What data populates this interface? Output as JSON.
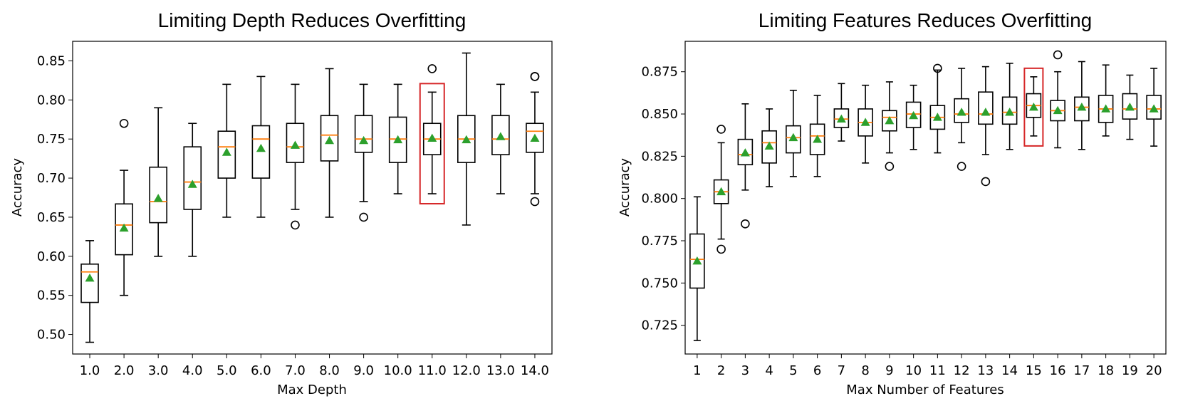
{
  "colors": {
    "box": "#000000",
    "median": "#ff7f0e",
    "mean_marker": "#2ca02c",
    "highlight": "#d62728",
    "background": "#ffffff"
  },
  "chart_data": [
    {
      "type": "box",
      "title": "Limiting Depth Reduces Overfitting",
      "xlabel": "Max Depth",
      "ylabel": "Accuracy",
      "ylim": [
        0.475,
        0.875
      ],
      "yticks": [
        "0.50",
        "0.55",
        "0.60",
        "0.65",
        "0.70",
        "0.75",
        "0.80",
        "0.85"
      ],
      "categories": [
        "1.0",
        "2.0",
        "3.0",
        "4.0",
        "5.0",
        "6.0",
        "7.0",
        "8.0",
        "9.0",
        "10.0",
        "11.0",
        "12.0",
        "13.0",
        "14.0"
      ],
      "highlight_category": "11.0",
      "boxes": [
        {
          "whislo": 0.49,
          "q1": 0.541,
          "med": 0.58,
          "q3": 0.59,
          "whishi": 0.62,
          "mean": 0.572,
          "fliers": []
        },
        {
          "whislo": 0.55,
          "q1": 0.602,
          "med": 0.64,
          "q3": 0.667,
          "whishi": 0.71,
          "mean": 0.636,
          "fliers": [
            0.77
          ]
        },
        {
          "whislo": 0.6,
          "q1": 0.643,
          "med": 0.67,
          "q3": 0.714,
          "whishi": 0.79,
          "mean": 0.674,
          "fliers": []
        },
        {
          "whislo": 0.6,
          "q1": 0.66,
          "med": 0.695,
          "q3": 0.74,
          "whishi": 0.77,
          "mean": 0.692,
          "fliers": []
        },
        {
          "whislo": 0.65,
          "q1": 0.7,
          "med": 0.74,
          "q3": 0.76,
          "whishi": 0.82,
          "mean": 0.733,
          "fliers": []
        },
        {
          "whislo": 0.65,
          "q1": 0.7,
          "med": 0.75,
          "q3": 0.767,
          "whishi": 0.83,
          "mean": 0.738,
          "fliers": []
        },
        {
          "whislo": 0.66,
          "q1": 0.72,
          "med": 0.74,
          "q3": 0.77,
          "whishi": 0.82,
          "mean": 0.742,
          "fliers": [
            0.64
          ]
        },
        {
          "whislo": 0.65,
          "q1": 0.722,
          "med": 0.755,
          "q3": 0.78,
          "whishi": 0.84,
          "mean": 0.748,
          "fliers": []
        },
        {
          "whislo": 0.67,
          "q1": 0.733,
          "med": 0.75,
          "q3": 0.78,
          "whishi": 0.82,
          "mean": 0.748,
          "fliers": [
            0.65
          ]
        },
        {
          "whislo": 0.68,
          "q1": 0.72,
          "med": 0.75,
          "q3": 0.778,
          "whishi": 0.82,
          "mean": 0.749,
          "fliers": []
        },
        {
          "whislo": 0.68,
          "q1": 0.73,
          "med": 0.75,
          "q3": 0.77,
          "whishi": 0.81,
          "mean": 0.751,
          "fliers": [
            0.84
          ]
        },
        {
          "whislo": 0.64,
          "q1": 0.72,
          "med": 0.75,
          "q3": 0.78,
          "whishi": 0.86,
          "mean": 0.749,
          "fliers": []
        },
        {
          "whislo": 0.68,
          "q1": 0.73,
          "med": 0.75,
          "q3": 0.78,
          "whishi": 0.82,
          "mean": 0.753,
          "fliers": []
        },
        {
          "whislo": 0.68,
          "q1": 0.733,
          "med": 0.76,
          "q3": 0.77,
          "whishi": 0.81,
          "mean": 0.751,
          "fliers": [
            0.67,
            0.83,
            0.83
          ]
        }
      ]
    },
    {
      "type": "box",
      "title": "Limiting Features Reduces Overfitting",
      "xlabel": "Max Number of Features",
      "ylabel": "Accuracy",
      "ylim": [
        0.708,
        0.893
      ],
      "yticks": [
        "0.725",
        "0.750",
        "0.775",
        "0.800",
        "0.825",
        "0.850",
        "0.875"
      ],
      "categories": [
        "1",
        "2",
        "3",
        "4",
        "5",
        "6",
        "7",
        "8",
        "9",
        "10",
        "11",
        "12",
        "13",
        "14",
        "15",
        "16",
        "17",
        "18",
        "19",
        "20"
      ],
      "highlight_category": "15",
      "boxes": [
        {
          "whislo": 0.716,
          "q1": 0.747,
          "med": 0.764,
          "q3": 0.779,
          "whishi": 0.801,
          "mean": 0.763,
          "fliers": []
        },
        {
          "whislo": 0.776,
          "q1": 0.797,
          "med": 0.804,
          "q3": 0.811,
          "whishi": 0.833,
          "mean": 0.804,
          "fliers": [
            0.77,
            0.841
          ]
        },
        {
          "whislo": 0.805,
          "q1": 0.82,
          "med": 0.826,
          "q3": 0.835,
          "whishi": 0.856,
          "mean": 0.827,
          "fliers": [
            0.785
          ]
        },
        {
          "whislo": 0.807,
          "q1": 0.821,
          "med": 0.833,
          "q3": 0.84,
          "whishi": 0.853,
          "mean": 0.831,
          "fliers": []
        },
        {
          "whislo": 0.813,
          "q1": 0.827,
          "med": 0.836,
          "q3": 0.843,
          "whishi": 0.864,
          "mean": 0.836,
          "fliers": []
        },
        {
          "whislo": 0.813,
          "q1": 0.826,
          "med": 0.837,
          "q3": 0.844,
          "whishi": 0.861,
          "mean": 0.835,
          "fliers": []
        },
        {
          "whislo": 0.834,
          "q1": 0.842,
          "med": 0.847,
          "q3": 0.853,
          "whishi": 0.868,
          "mean": 0.847,
          "fliers": []
        },
        {
          "whislo": 0.821,
          "q1": 0.837,
          "med": 0.845,
          "q3": 0.853,
          "whishi": 0.867,
          "mean": 0.845,
          "fliers": []
        },
        {
          "whislo": 0.827,
          "q1": 0.84,
          "med": 0.848,
          "q3": 0.852,
          "whishi": 0.869,
          "mean": 0.846,
          "fliers": [
            0.819
          ]
        },
        {
          "whislo": 0.829,
          "q1": 0.842,
          "med": 0.85,
          "q3": 0.857,
          "whishi": 0.867,
          "mean": 0.849,
          "fliers": []
        },
        {
          "whislo": 0.827,
          "q1": 0.841,
          "med": 0.848,
          "q3": 0.855,
          "whishi": 0.876,
          "mean": 0.848,
          "fliers": [
            0.877
          ]
        },
        {
          "whislo": 0.833,
          "q1": 0.845,
          "med": 0.85,
          "q3": 0.859,
          "whishi": 0.877,
          "mean": 0.851,
          "fliers": [
            0.819
          ]
        },
        {
          "whislo": 0.826,
          "q1": 0.844,
          "med": 0.85,
          "q3": 0.863,
          "whishi": 0.878,
          "mean": 0.851,
          "fliers": [
            0.81
          ]
        },
        {
          "whislo": 0.829,
          "q1": 0.844,
          "med": 0.851,
          "q3": 0.86,
          "whishi": 0.88,
          "mean": 0.851,
          "fliers": []
        },
        {
          "whislo": 0.837,
          "q1": 0.848,
          "med": 0.855,
          "q3": 0.862,
          "whishi": 0.872,
          "mean": 0.854,
          "fliers": []
        },
        {
          "whislo": 0.83,
          "q1": 0.846,
          "med": 0.852,
          "q3": 0.858,
          "whishi": 0.875,
          "mean": 0.852,
          "fliers": [
            0.885
          ]
        },
        {
          "whislo": 0.829,
          "q1": 0.846,
          "med": 0.854,
          "q3": 0.86,
          "whishi": 0.881,
          "mean": 0.854,
          "fliers": []
        },
        {
          "whislo": 0.837,
          "q1": 0.845,
          "med": 0.853,
          "q3": 0.861,
          "whishi": 0.879,
          "mean": 0.853,
          "fliers": []
        },
        {
          "whislo": 0.835,
          "q1": 0.847,
          "med": 0.853,
          "q3": 0.862,
          "whishi": 0.873,
          "mean": 0.854,
          "fliers": []
        },
        {
          "whislo": 0.831,
          "q1": 0.847,
          "med": 0.853,
          "q3": 0.861,
          "whishi": 0.877,
          "mean": 0.853,
          "fliers": []
        }
      ]
    }
  ]
}
